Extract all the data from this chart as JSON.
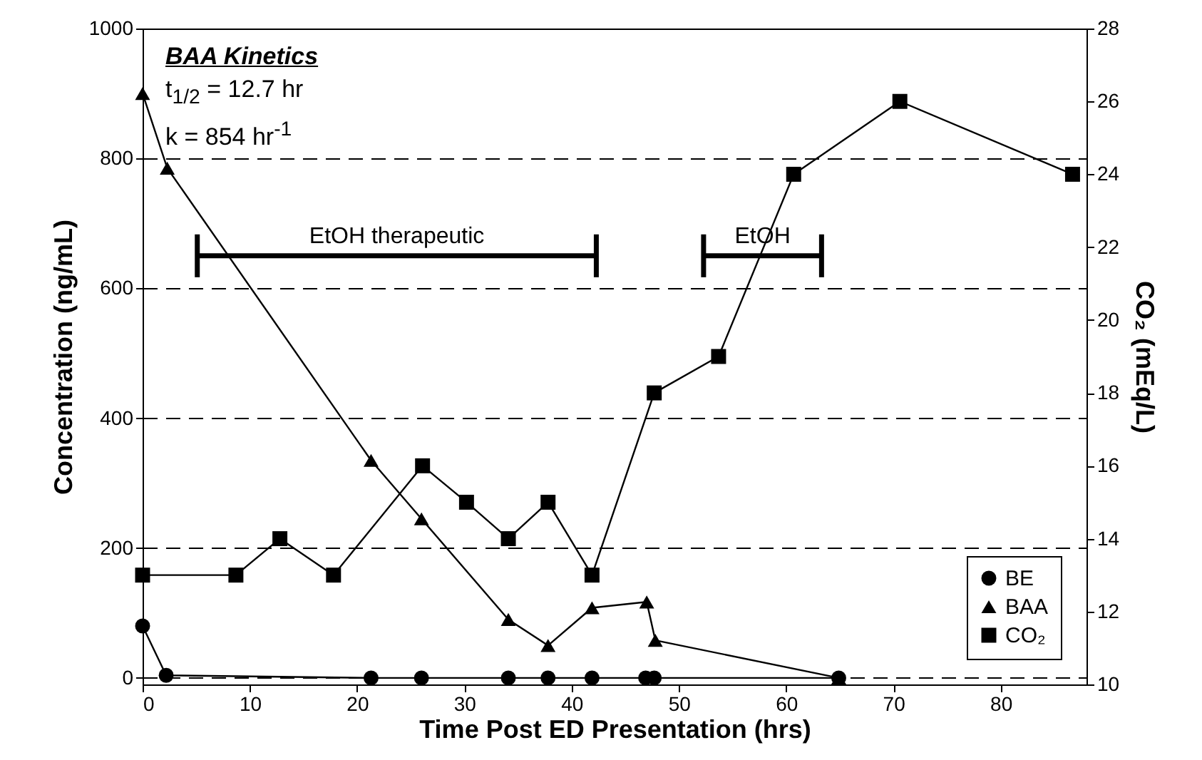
{
  "chart_data": {
    "type": "line",
    "xlabel": "Time Post ED Presentation (hrs)",
    "ylabel": "Concentration (ng/mL)",
    "y2label": "CO₂ (mEq/L)",
    "xlim": [
      0,
      88
    ],
    "xticks": [
      0,
      10,
      20,
      30,
      40,
      50,
      60,
      70,
      80
    ],
    "ylim": [
      -10,
      1000
    ],
    "yticks": [
      0,
      200,
      400,
      600,
      800,
      1000
    ],
    "y2lim": [
      10,
      28
    ],
    "y2ticks": [
      10,
      12,
      14,
      16,
      18,
      20,
      22,
      24,
      26,
      28
    ],
    "grid": "y",
    "legend": "bottom right",
    "series": [
      {
        "name": "BE",
        "color": "#000000",
        "marker": "circle",
        "x": [
          0,
          2.2,
          21.3,
          26,
          34.1,
          37.8,
          41.9,
          46.9,
          47.7,
          64.9
        ],
        "values": [
          80,
          4,
          0,
          0,
          0,
          0,
          0,
          0,
          0,
          0
        ]
      },
      {
        "name": "BAA",
        "color": "#000000",
        "marker": "triangle",
        "x": [
          0,
          2.3,
          21.3,
          26,
          34.1,
          37.8,
          41.9,
          47,
          47.8,
          64.9
        ],
        "values": [
          900,
          785,
          335,
          245,
          90,
          50,
          108,
          117,
          58,
          0
        ]
      },
      {
        "name": "CO₂",
        "color": "#000000",
        "marker": "square",
        "axis": "y2",
        "x": [
          0,
          8.7,
          12.8,
          17.8,
          26.1,
          30.2,
          34.1,
          37.8,
          41.9,
          47.7,
          53.7,
          60.7,
          70.6,
          86.7
        ],
        "values": [
          13,
          13,
          14,
          13,
          16,
          15,
          14,
          15,
          13,
          18,
          19,
          24,
          26,
          24
        ]
      },
      {
        "name": "EtOH therapeutic",
        "color": "#000000",
        "marker": "none",
        "x": [
          5.1,
          42.3
        ],
        "values": [
          650,
          650
        ],
        "errors": [
          33,
          33
        ]
      },
      {
        "name": "EtOH",
        "color": "#000000",
        "marker": "none",
        "x": [
          52.3,
          63.3
        ],
        "values": [
          650,
          650
        ],
        "errors": [
          33,
          33
        ]
      }
    ],
    "annotations": [
      "BAA Kinetics",
      "t$_{1/2}$ = 12.7 hr",
      "k = 854 hr$^{-1}$"
    ]
  }
}
